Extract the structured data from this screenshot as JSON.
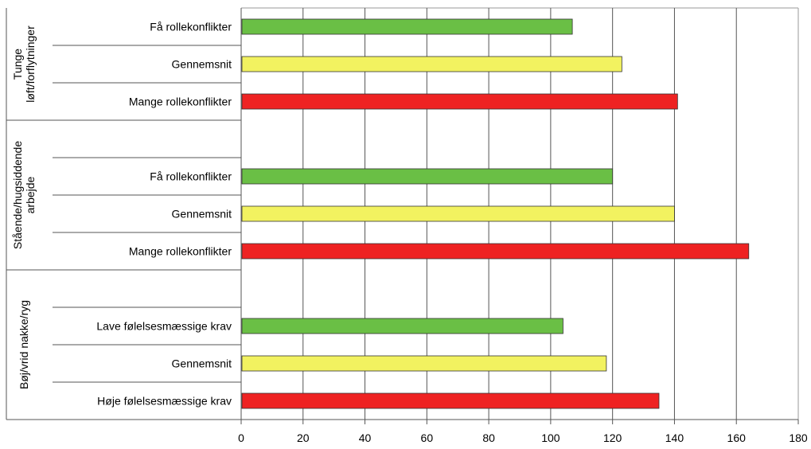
{
  "chart_data": {
    "type": "bar",
    "orientation": "horizontal",
    "title": "",
    "xlabel": "",
    "ylabel": "",
    "xlim": [
      0,
      180
    ],
    "x_ticks": [
      0,
      20,
      40,
      60,
      80,
      100,
      120,
      140,
      160,
      180
    ],
    "x_tick_labels": [
      "0",
      "20",
      "40",
      "60",
      "80",
      "100",
      "120",
      "140",
      "160",
      "180"
    ],
    "grid": "vertical",
    "groups": [
      {
        "label": "Tunge løft/forflytninger",
        "label_lines": [
          "Tunge",
          "løft/forflytninger"
        ],
        "bars": [
          {
            "label": "Få rollekonflikter",
            "value": 107,
            "color": "#6abf45"
          },
          {
            "label": "Gennemsnit",
            "value": 123,
            "color": "#f2f260"
          },
          {
            "label": "Mange rollekonflikter",
            "value": 141,
            "color": "#ee2222"
          }
        ]
      },
      {
        "label": "Stående/hugsiddende arbejde",
        "label_lines": [
          "Stående/hugsiddende",
          "arbejde"
        ],
        "bars": [
          {
            "label": "",
            "value": null,
            "color": null
          },
          {
            "label": "Få rollekonflikter",
            "value": 120,
            "color": "#6abf45"
          },
          {
            "label": "Gennemsnit",
            "value": 140,
            "color": "#f2f260"
          },
          {
            "label": "Mange rollekonflikter",
            "value": 164,
            "color": "#ee2222"
          }
        ]
      },
      {
        "label": "Bøj/vrid nakke/ryg",
        "label_lines": [
          "Bøj/vrid nakke/ryg"
        ],
        "bars": [
          {
            "label": "",
            "value": null,
            "color": null
          },
          {
            "label": "Lave følelsesmæssige krav",
            "value": 104,
            "color": "#6abf45"
          },
          {
            "label": "Gennemsnit",
            "value": 118,
            "color": "#f2f260"
          },
          {
            "label": "Høje følelsesmæssige krav",
            "value": 135,
            "color": "#ee2222"
          }
        ]
      }
    ]
  }
}
